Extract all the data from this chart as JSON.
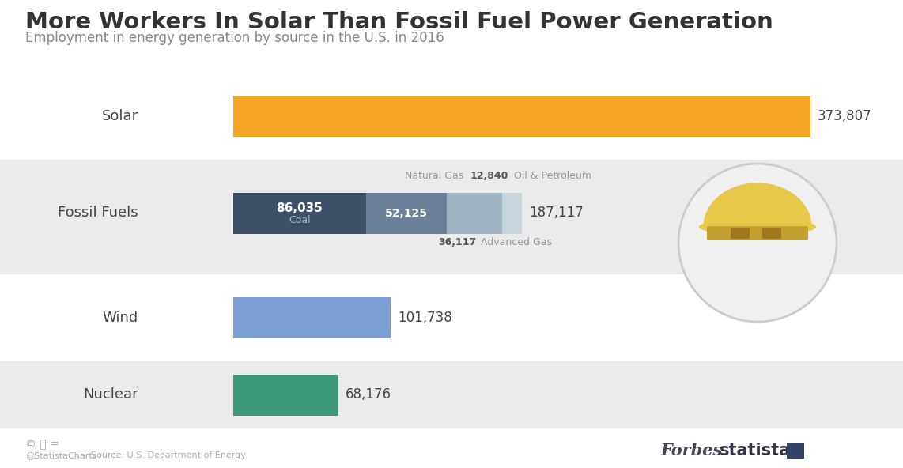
{
  "title": "More Workers In Solar Than Fossil Fuel Power Generation",
  "subtitle": "Employment in energy generation by source in the U.S. in 2016",
  "background_color": "#f5f5f5",
  "solar_value": 373807,
  "solar_color": "#f5a623",
  "wind_value": 101738,
  "wind_color": "#7b9fd4",
  "nuclear_value": 68176,
  "nuclear_color": "#3d9a7a",
  "fossil_segments": [
    {
      "label": "Coal",
      "value": 86035,
      "color": "#3d5068"
    },
    {
      "label": "Natural Gas",
      "value": 52125,
      "color": "#6b8099"
    },
    {
      "label": "Advanced Gas",
      "value": 36117,
      "color": "#a0b4c4"
    },
    {
      "label": "Oil & Petroleum",
      "value": 12840,
      "color": "#c8d4dc"
    }
  ],
  "fossil_total": 187117,
  "max_value": 373807,
  "hat_color": "#e8c84a",
  "hat_band_color": "#c4a030",
  "hat_shadow_color": "#c4a030",
  "circle_color": "#d8d8d8",
  "title_fontsize": 21,
  "subtitle_fontsize": 12,
  "bar_label_fontsize": 12,
  "cat_label_fontsize": 13
}
